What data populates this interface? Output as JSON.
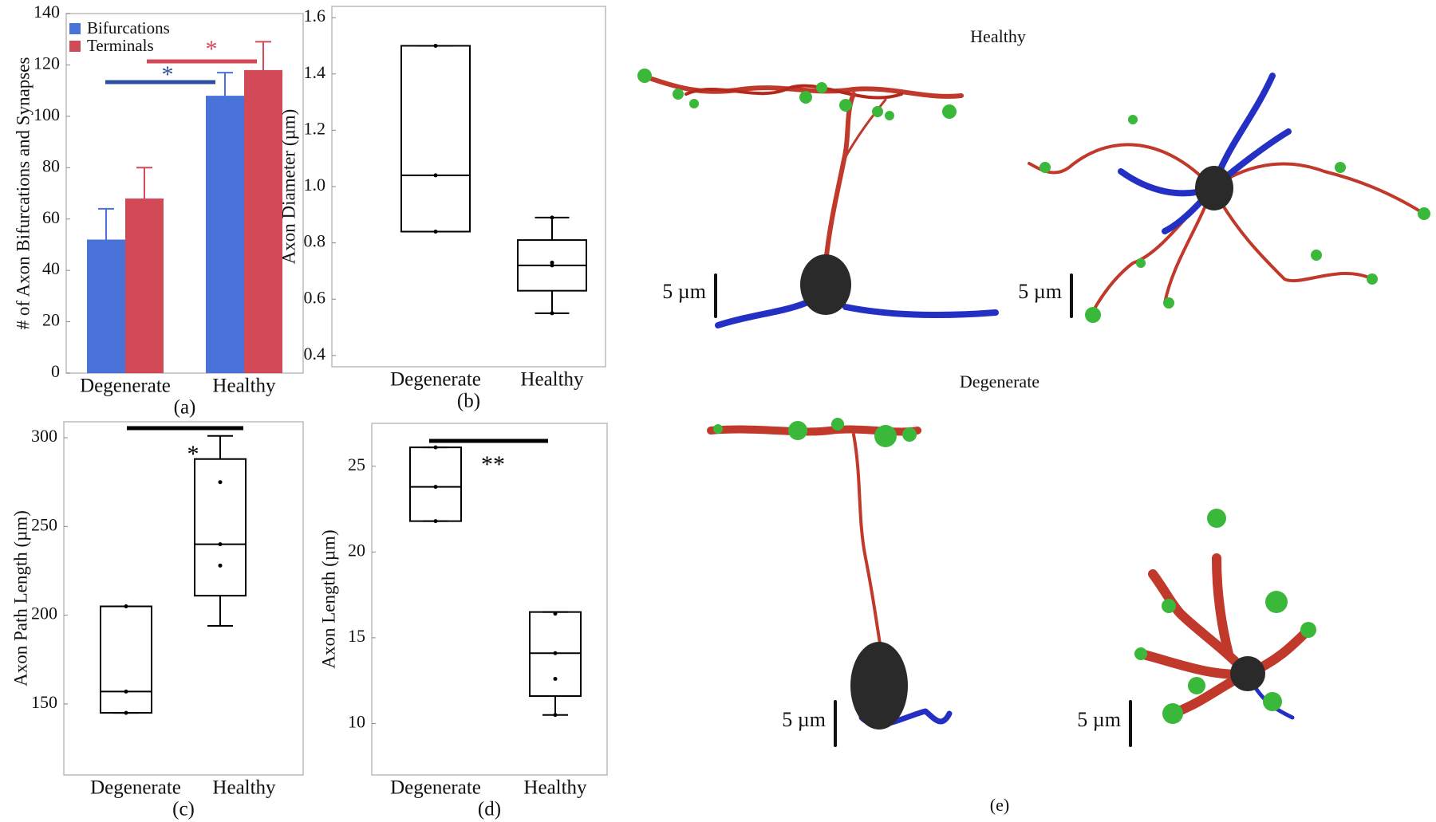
{
  "chart_data": [
    {
      "type": "bar",
      "ylabel": "# of Axon Bifurcations and Synapses",
      "caption": "(a)",
      "categories": [
        "Degenerate",
        "Healthy"
      ],
      "series": [
        {
          "name": "Bifurcations",
          "color": "#4a73d9",
          "values": [
            52,
            108
          ],
          "errors": [
            12,
            9
          ]
        },
        {
          "name": "Terminals",
          "color": "#d24a58",
          "values": [
            68,
            118
          ],
          "errors": [
            12,
            11
          ]
        }
      ],
      "ylim": [
        0,
        140
      ],
      "yticks": [
        0,
        20,
        40,
        60,
        80,
        100,
        120,
        140
      ],
      "legend": "upper left",
      "significance": [
        {
          "label": "*",
          "color": "#2f4fa0"
        },
        {
          "label": "*",
          "color": "#d24a58"
        }
      ]
    },
    {
      "type": "box",
      "ylabel": "Axon Diameter (µm)",
      "caption": "(b)",
      "categories": [
        "Degenerate",
        "Healthy"
      ],
      "boxes": [
        {
          "min": 0.84,
          "q1": 0.84,
          "median": 1.04,
          "q3": 1.5,
          "max": 1.5,
          "points": [
            0.84,
            1.04,
            1.5
          ]
        },
        {
          "min": 0.55,
          "q1": 0.63,
          "median": 0.72,
          "q3": 0.81,
          "max": 0.89,
          "points": [
            0.55,
            0.72,
            0.73,
            0.89
          ]
        }
      ],
      "ylim": [
        0.36,
        1.64
      ],
      "yticks": [
        0.4,
        0.6,
        0.8,
        {
          "value": 1,
          "label": "1.0"
        },
        1.2,
        1.4,
        1.6
      ],
      "significance": []
    },
    {
      "type": "box",
      "ylabel": "Axon Path Length (µm)",
      "caption": "(c)",
      "categories": [
        "Degenerate",
        "Healthy"
      ],
      "boxes": [
        {
          "min": 145,
          "q1": 145,
          "median": 157,
          "q3": 205,
          "max": 205,
          "points": [
            145,
            157,
            205
          ]
        },
        {
          "min": 194,
          "q1": 211,
          "median": 240,
          "q3": 288,
          "max": 301,
          "points": [
            228,
            240,
            275
          ]
        }
      ],
      "ylim": [
        110,
        309
      ],
      "yticks": [
        150,
        200,
        250,
        300
      ],
      "significance": [
        {
          "label": "*",
          "color": "#000000"
        }
      ]
    },
    {
      "type": "box",
      "ylabel": "Axon Length (µm)",
      "caption": "(d)",
      "categories": [
        "Degenerate",
        "Healthy"
      ],
      "boxes": [
        {
          "min": 21.8,
          "q1": 21.8,
          "median": 23.8,
          "q3": 26.1,
          "max": 26.1,
          "points": [
            21.8,
            23.8,
            26.1
          ]
        },
        {
          "min": 10.5,
          "q1": 11.6,
          "median": 14.1,
          "q3": 16.5,
          "max": 16.5,
          "points": [
            10.5,
            12.6,
            14.1,
            16.4
          ]
        }
      ],
      "ylim": [
        7,
        27.5
      ],
      "yticks": [
        10,
        15,
        20,
        25
      ],
      "significance": [
        {
          "label": "**",
          "color": "#000000"
        }
      ]
    }
  ],
  "panel_e": {
    "caption": "(e)",
    "group_labels": [
      "Healthy",
      "Degenerate"
    ],
    "scale_labels": [
      "5 µm",
      "5 µm",
      "5 µm",
      "5 µm"
    ]
  }
}
